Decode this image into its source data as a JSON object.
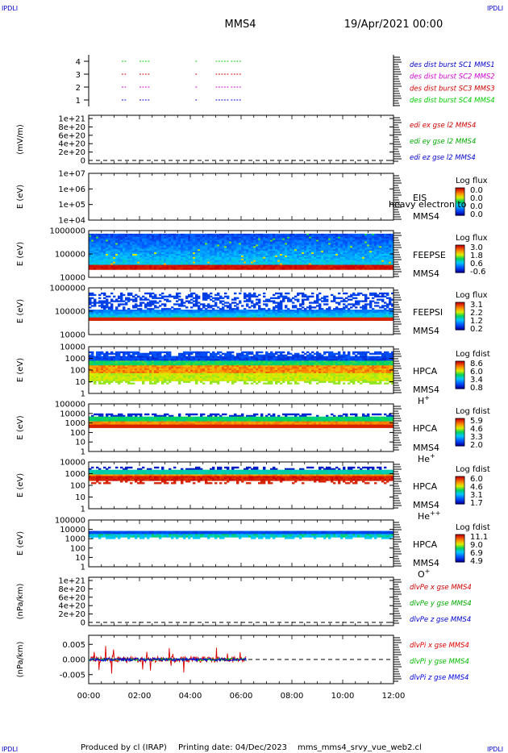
{
  "corner_label": "IPDLI",
  "header": {
    "title": "MMS4",
    "date": "19/Apr/2021 00:00"
  },
  "footer": {
    "produced_by": "Produced by cl (IRAP)",
    "printing_date": "Printing date: 04/Dec/2023",
    "script_name": "mms_mms4_srvy_vue_web2.cl"
  },
  "time_axis": {
    "ticks": [
      "00:00",
      "02:00",
      "04:00",
      "06:00",
      "08:00",
      "10:00",
      "12:00"
    ],
    "range_hours": [
      0,
      12
    ]
  },
  "chart_data": [
    {
      "type": "line",
      "ylim": [
        0.5,
        4.5
      ],
      "yticks": [
        "1",
        "2",
        "3",
        "4"
      ],
      "series": [
        {
          "name": "des dist burst SC1 MMS1",
          "color": "#0000cc",
          "level": 1,
          "segments": [
            [
              1.3,
              1.5
            ],
            [
              2.0,
              2.4
            ],
            [
              4.2,
              4.3
            ],
            [
              5.0,
              5.5
            ],
            [
              5.6,
              6.0
            ]
          ]
        },
        {
          "name": "des dist burst SC2 MMS2",
          "color": "#cc00cc",
          "level": 2,
          "segments": [
            [
              1.3,
              1.5
            ],
            [
              2.0,
              2.4
            ],
            [
              4.2,
              4.3
            ],
            [
              5.0,
              5.5
            ],
            [
              5.6,
              6.0
            ]
          ]
        },
        {
          "name": "des dist burst SC3 MMS3",
          "color": "#cc0000",
          "level": 3,
          "segments": [
            [
              1.3,
              1.5
            ],
            [
              2.0,
              2.4
            ],
            [
              4.2,
              4.3
            ],
            [
              5.0,
              5.5
            ],
            [
              5.6,
              6.0
            ]
          ]
        },
        {
          "name": "des dist burst SC4 MMS4",
          "color": "#00cc00",
          "level": 4,
          "segments": [
            [
              1.3,
              1.5
            ],
            [
              2.0,
              2.4
            ],
            [
              4.2,
              4.3
            ],
            [
              5.0,
              5.5
            ],
            [
              5.6,
              6.0
            ]
          ]
        }
      ]
    },
    {
      "type": "line",
      "ylabel": "(mV/m)",
      "ylim": [
        0,
        1e+21
      ],
      "yticks": [
        "1e+21",
        "8e+20",
        "6e+20",
        "4e+20",
        "2e+20",
        "0"
      ],
      "series": [
        {
          "name": "edi ex gse l2 MMS4",
          "color": "#cc0000"
        },
        {
          "name": "edi ey gse l2 MMS4",
          "color": "#00aa00"
        },
        {
          "name": "edi ez gse l2 MMS4",
          "color": "#0000cc"
        }
      ]
    },
    {
      "type": "heatmap",
      "ylabel": "E (eV)",
      "yticks": [
        "1e+07",
        "1e+06",
        "1e+05",
        "1e+04"
      ],
      "labels": [
        "EIS",
        "MMS4"
      ],
      "overlay_text": "heavy electron to",
      "colorbar": {
        "title": "Log flux",
        "ticks": [
          "0.0",
          "0.0",
          "0.0",
          "0.0"
        ]
      },
      "profile": "empty"
    },
    {
      "type": "heatmap",
      "ylabel": "E (eV)",
      "yticks": [
        "1000000",
        "100000",
        "10000"
      ],
      "labels": [
        "FEEPSE",
        "MMS4"
      ],
      "colorbar": {
        "title": "Log flux",
        "ticks": [
          "3.0",
          "1.8",
          "0.6",
          "-0.6"
        ]
      },
      "profile": "feepse"
    },
    {
      "type": "heatmap",
      "ylabel": "E (eV)",
      "yticks": [
        "1000000",
        "100000",
        "10000"
      ],
      "labels": [
        "FEEPSI",
        "MMS4"
      ],
      "colorbar": {
        "title": "Log flux",
        "ticks": [
          "3.1",
          "2.2",
          "1.2",
          "0.2"
        ]
      },
      "profile": "feepsi"
    },
    {
      "type": "heatmap",
      "ylabel": "E (eV)",
      "yticks": [
        "10000",
        "1000",
        "100",
        "10",
        "1"
      ],
      "labels": [
        "HPCA",
        "MMS4"
      ],
      "species": "H",
      "charge": "+",
      "colorbar": {
        "title": "Log fdist",
        "ticks": [
          "8.6",
          "6.0",
          "3.4",
          "0.8"
        ]
      },
      "profile": "hplus"
    },
    {
      "type": "heatmap",
      "ylabel": "E (eV)",
      "yticks": [
        "100000",
        "10000",
        "1000",
        "100",
        "10",
        "1"
      ],
      "labels": [
        "HPCA",
        "MMS4"
      ],
      "species": "He",
      "charge": "+",
      "colorbar": {
        "title": "Log fdist",
        "ticks": [
          "5.9",
          "4.6",
          "3.3",
          "2.0"
        ]
      },
      "profile": "heplus"
    },
    {
      "type": "heatmap",
      "ylabel": "E (eV)",
      "yticks": [
        "10000",
        "1000",
        "100",
        "10",
        "1"
      ],
      "labels": [
        "HPCA",
        "MMS4"
      ],
      "species": "He",
      "charge": "++",
      "colorbar": {
        "title": "Log fdist",
        "ticks": [
          "6.0",
          "4.6",
          "3.1",
          "1.7"
        ]
      },
      "profile": "heplusplus"
    },
    {
      "type": "heatmap",
      "ylabel": "E (eV)",
      "yticks": [
        "100000",
        "10000",
        "1000",
        "100",
        "10",
        "1"
      ],
      "labels": [
        "HPCA",
        "MMS4"
      ],
      "species": "O",
      "charge": "+",
      "colorbar": {
        "title": "Log fdist",
        "ticks": [
          "11.1",
          "9.0",
          "6.9",
          "4.9"
        ]
      },
      "profile": "oplus"
    },
    {
      "type": "line",
      "ylabel": "(nPa/km)",
      "ylim": [
        0,
        1e+21
      ],
      "yticks": [
        "1e+21",
        "8e+20",
        "6e+20",
        "4e+20",
        "2e+20",
        "0"
      ],
      "series": [
        {
          "name": "dlvPe x gse MMS4",
          "color": "#cc0000"
        },
        {
          "name": "dlvPe y gse MMS4",
          "color": "#00aa00"
        },
        {
          "name": "dlvPe z gse MMS4",
          "color": "#0000cc"
        }
      ]
    },
    {
      "type": "line",
      "ylabel": "(nPa/km)",
      "ylim": [
        -0.008,
        0.008
      ],
      "yticks": [
        "0.005",
        "0.000",
        "-0.005"
      ],
      "ytick_values": [
        0.005,
        0,
        -0.005
      ],
      "data_extent_hours": [
        0,
        6.2
      ],
      "series": [
        {
          "name": "dlvPi x gse MMS4",
          "color": "#dd0000",
          "amplitude": 0.002
        },
        {
          "name": "dlvPi y gse MMS4",
          "color": "#00bb00",
          "amplitude": 0.0008
        },
        {
          "name": "dlvPi z gse MMS4",
          "color": "#0000dd",
          "amplitude": 0.001
        }
      ]
    }
  ]
}
